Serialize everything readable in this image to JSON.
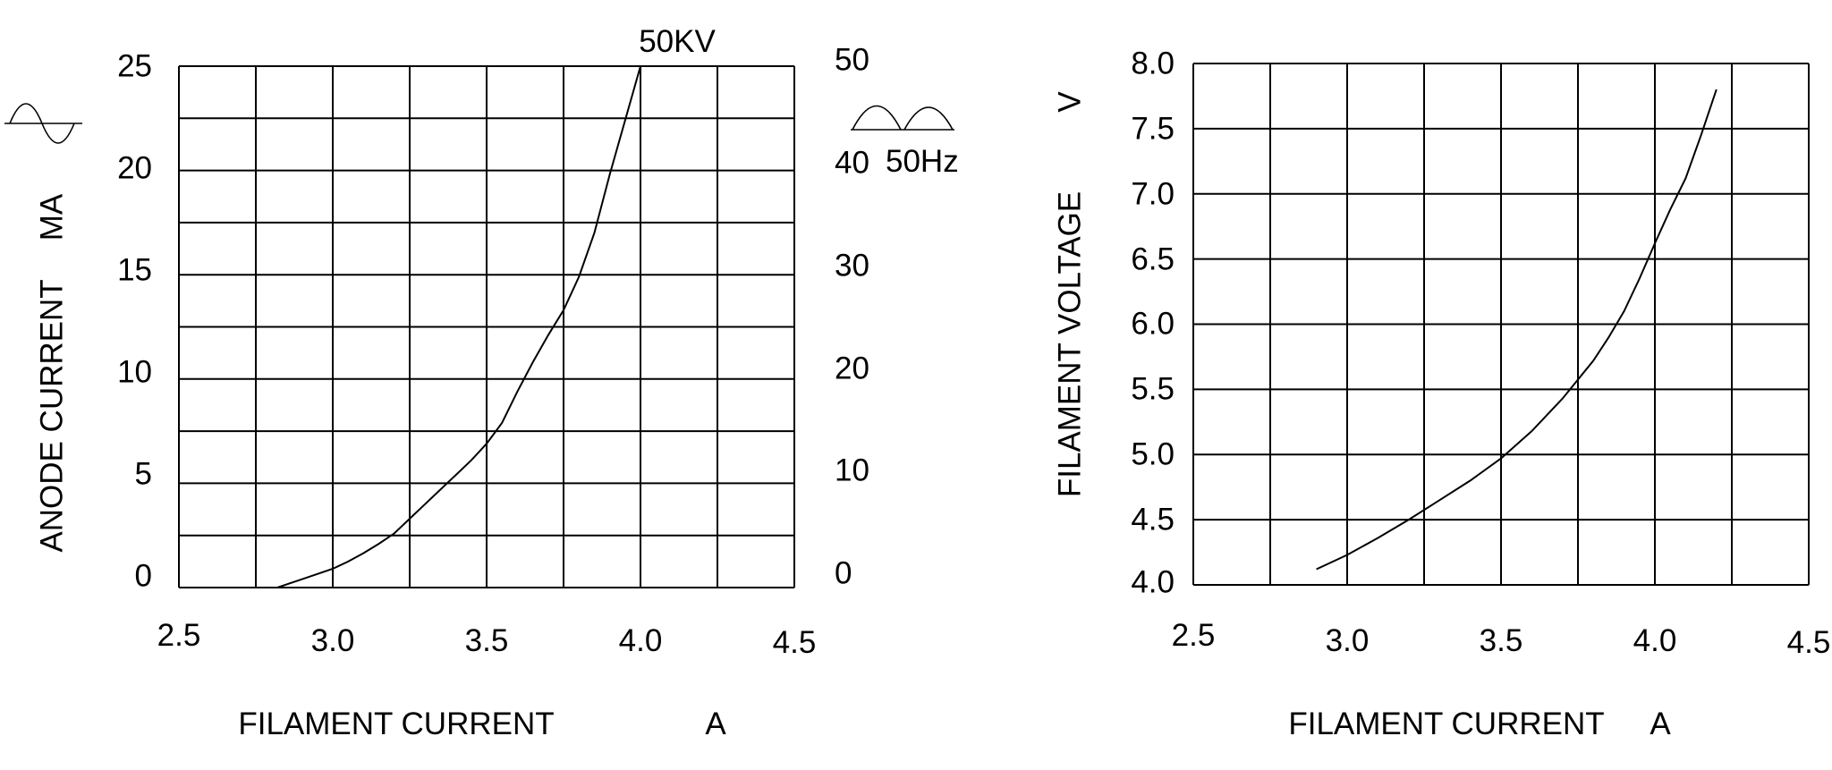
{
  "page": {
    "background": "#ffffff",
    "line_color": "#000000"
  },
  "left_chart": {
    "curve_label": "50KV",
    "y_axis_left": {
      "unit_label": "MA",
      "title": "ANODE CURRENT",
      "ticks": [
        "25",
        "20",
        "15",
        "10",
        "5",
        "0"
      ]
    },
    "y_axis_right": {
      "ticks": [
        "50",
        "40",
        "30",
        "20",
        "10",
        "0"
      ],
      "waveform_label": "50Hz"
    },
    "x_axis": {
      "ticks": [
        "2.5",
        "3.0",
        "3.5",
        "4.0",
        "4.5"
      ],
      "title": "FILAMENT CURRENT",
      "unit": "A"
    },
    "icons": {
      "left_waveform": "sine-wave",
      "right_waveform": "full-wave-rectified"
    }
  },
  "right_chart": {
    "y_axis": {
      "unit_label": "V",
      "title": "FILAMENT VOLTAGE",
      "ticks": [
        "8.0",
        "7.5",
        "7.0",
        "6.5",
        "6.0",
        "5.5",
        "5.0",
        "4.5",
        "4.0"
      ]
    },
    "x_axis": {
      "ticks": [
        "2.5",
        "3.0",
        "3.5",
        "4.0",
        "4.5"
      ],
      "title": "FILAMENT CURRENT",
      "unit": "A"
    }
  },
  "chart_data": [
    {
      "type": "line",
      "title": "",
      "xlabel": "FILAMENT CURRENT",
      "x_unit": "A",
      "ylabel_left": "ANODE CURRENT",
      "y_unit_left": "MA",
      "ylabel_right": "",
      "y_right_note": "50Hz",
      "xlim": [
        2.5,
        4.5
      ],
      "ylim_left": [
        0,
        25
      ],
      "ylim_right": [
        0,
        50
      ],
      "x_grid_step": 0.25,
      "y_grid_step_left": 2.5,
      "grid": true,
      "legend_position": "none",
      "series": [
        {
          "name": "50KV",
          "points": [
            [
              2.82,
              0
            ],
            [
              2.86,
              0.2
            ],
            [
              2.9,
              0.4
            ],
            [
              2.95,
              0.65
            ],
            [
              3.0,
              0.9
            ],
            [
              3.05,
              1.25
            ],
            [
              3.1,
              1.65
            ],
            [
              3.15,
              2.1
            ],
            [
              3.2,
              2.6
            ],
            [
              3.25,
              3.3
            ],
            [
              3.3,
              4.0
            ],
            [
              3.35,
              4.7
            ],
            [
              3.4,
              5.4
            ],
            [
              3.45,
              6.1
            ],
            [
              3.5,
              6.9
            ],
            [
              3.55,
              7.9
            ],
            [
              3.6,
              9.4
            ],
            [
              3.65,
              10.8
            ],
            [
              3.7,
              12.1
            ],
            [
              3.75,
              13.3
            ],
            [
              3.8,
              14.9
            ],
            [
              3.85,
              17.0
            ],
            [
              3.9,
              19.8
            ],
            [
              3.95,
              22.4
            ],
            [
              4.0,
              25
            ]
          ]
        }
      ]
    },
    {
      "type": "line",
      "title": "",
      "xlabel": "FILAMENT CURRENT",
      "x_unit": "A",
      "ylabel": "FILAMENT VOLTAGE",
      "y_unit": "V",
      "xlim": [
        2.5,
        4.5
      ],
      "ylim": [
        4.0,
        8.0
      ],
      "x_grid_step": 0.25,
      "y_grid_step": 0.5,
      "grid": true,
      "legend_position": "none",
      "series": [
        {
          "name": "FILAMENT VOLTAGE",
          "points": [
            [
              2.9,
              4.12
            ],
            [
              3.0,
              4.23
            ],
            [
              3.1,
              4.36
            ],
            [
              3.2,
              4.5
            ],
            [
              3.3,
              4.65
            ],
            [
              3.4,
              4.8
            ],
            [
              3.5,
              4.97
            ],
            [
              3.6,
              5.18
            ],
            [
              3.7,
              5.43
            ],
            [
              3.8,
              5.72
            ],
            [
              3.85,
              5.9
            ],
            [
              3.9,
              6.1
            ],
            [
              3.95,
              6.35
            ],
            [
              4.0,
              6.62
            ],
            [
              4.05,
              6.88
            ],
            [
              4.1,
              7.12
            ],
            [
              4.15,
              7.45
            ],
            [
              4.2,
              7.8
            ]
          ]
        }
      ]
    }
  ]
}
